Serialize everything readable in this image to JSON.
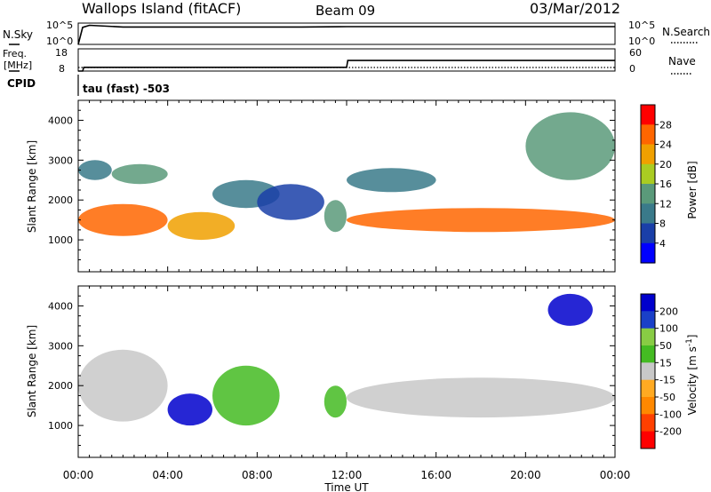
{
  "header": {
    "station": "Wallops Island (fitACF)",
    "beam": "Beam 09",
    "date": "03/Mar/2012"
  },
  "small_panels": {
    "nsky_label": "N.Sky",
    "nsky_ticks": [
      "10^5",
      "10^0"
    ],
    "nsearch_label": "N.Search",
    "nsearch_ticks": [
      "10^5",
      "10^0"
    ],
    "freq_label_line1": "Freq.",
    "freq_label_line2": "[MHz]",
    "freq_ticks": [
      "18",
      "8"
    ],
    "nave_label": "Nave",
    "nave_ticks": [
      "60",
      "0"
    ],
    "cpid_label": "CPID",
    "cpid_text": "tau (fast) -503"
  },
  "colors": {
    "power_scale": [
      "#0000ff",
      "#1a3fa8",
      "#3a7a8a",
      "#5a9a7a",
      "#aacc22",
      "#f0a000",
      "#ff6600",
      "#ff0000"
    ],
    "velocity_scale": [
      "#ff0000",
      "#ff4000",
      "#ff8800",
      "#ffaa22",
      "#bbbbbb",
      "#44bb22",
      "#88cc44",
      "#1a40c8",
      "#0000cc"
    ],
    "velocity_gray": "#c8c8c8"
  },
  "chart_data": [
    {
      "type": "line",
      "panel": "N.Sky / N.Search",
      "x_unit": "hours UT",
      "x": [
        0,
        0.2,
        0.5,
        2,
        4,
        6,
        8,
        10,
        12,
        14,
        16,
        18,
        20,
        22,
        24
      ],
      "series": [
        {
          "values": [
            1,
            10000.0,
            30000.0,
            12000.0,
            12000.0,
            12000.0,
            12000.0,
            12000.0,
            15000.0,
            15000.0,
            15000.0,
            15000.0,
            15000.0,
            15000.0,
            15000.0
          ]
        }
      ],
      "yscale": "log",
      "yticks": [
        "10^0",
        "10^5"
      ]
    },
    {
      "type": "line",
      "panel": "Freq. / Nave",
      "x_unit": "hours UT",
      "series": [
        {
          "x": [
            0,
            0.2,
            0.25,
            12,
            12.05,
            24
          ],
          "values": [
            8,
            8,
            10.5,
            10.5,
            15,
            15
          ]
        },
        {
          "x": [
            0,
            24
          ],
          "values": [
            0,
            0
          ]
        }
      ],
      "yticks_left": [
        "8",
        "18"
      ],
      "yticks_right": [
        "0",
        "60"
      ]
    },
    {
      "type": "heatmap",
      "title": "Power [dB]",
      "xlabel": "Time UT",
      "ylabel": "Slant Range [km]",
      "xlim_hours": [
        0,
        24
      ],
      "ylim": [
        200,
        4500
      ],
      "xticks": [
        "00:00",
        "04:00",
        "08:00",
        "12:00",
        "16:00",
        "20:00",
        "00:00"
      ],
      "yticks": [
        1000,
        2000,
        3000,
        4000
      ],
      "colorbar_label": "Power [dB]",
      "colorbar_ticks": [
        4,
        8,
        12,
        16,
        20,
        24,
        28
      ],
      "colorbar_range": [
        0,
        32
      ],
      "regions": [
        {
          "x": [
            0,
            4
          ],
          "y": [
            1100,
            1900
          ],
          "level": 26
        },
        {
          "x": [
            4,
            7
          ],
          "y": [
            1000,
            1700
          ],
          "level": 22
        },
        {
          "x": [
            1.5,
            4
          ],
          "y": [
            2400,
            2900
          ],
          "level": 12
        },
        {
          "x": [
            0,
            1.5
          ],
          "y": [
            2500,
            3000
          ],
          "level": 8
        },
        {
          "x": [
            6,
            9
          ],
          "y": [
            1800,
            2500
          ],
          "level": 8
        },
        {
          "x": [
            8,
            11
          ],
          "y": [
            1500,
            2400
          ],
          "level": 6
        },
        {
          "x": [
            11,
            12
          ],
          "y": [
            1200,
            2000
          ],
          "level": 14
        },
        {
          "x": [
            12,
            24
          ],
          "y": [
            1200,
            1800
          ],
          "level": 24
        },
        {
          "x": [
            12,
            16
          ],
          "y": [
            2200,
            2800
          ],
          "level": 10
        },
        {
          "x": [
            20,
            24
          ],
          "y": [
            2500,
            4200
          ],
          "level": 12
        }
      ]
    },
    {
      "type": "heatmap",
      "title": "Velocity [m s^-1]",
      "xlabel": "Time UT",
      "ylabel": "Slant Range [km]",
      "xlim_hours": [
        0,
        24
      ],
      "ylim": [
        200,
        4500
      ],
      "xticks": [
        "00:00",
        "04:00",
        "08:00",
        "12:00",
        "16:00",
        "20:00",
        "00:00"
      ],
      "yticks": [
        1000,
        2000,
        3000,
        4000
      ],
      "colorbar_label": "Velocity [m s^-1]",
      "colorbar_ticks": [
        200,
        100,
        50,
        15,
        -15,
        -50,
        -100,
        -200
      ],
      "regions": [
        {
          "x": [
            0,
            4
          ],
          "y": [
            1100,
            2900
          ],
          "velocity": 0
        },
        {
          "x": [
            4,
            6
          ],
          "y": [
            1000,
            1800
          ],
          "velocity": 150
        },
        {
          "x": [
            6,
            9
          ],
          "y": [
            1000,
            2500
          ],
          "velocity": 40
        },
        {
          "x": [
            11,
            12
          ],
          "y": [
            1200,
            2000
          ],
          "velocity": 40
        },
        {
          "x": [
            12,
            24
          ],
          "y": [
            1200,
            2200
          ],
          "velocity": 0
        },
        {
          "x": [
            21,
            23
          ],
          "y": [
            3500,
            4300
          ],
          "velocity": 200
        }
      ]
    }
  ],
  "axes": {
    "ylabel": "Slant Range [km]",
    "xlabel": "Time UT",
    "xticks": [
      "00:00",
      "04:00",
      "08:00",
      "12:00",
      "16:00",
      "20:00",
      "00:00"
    ],
    "yticks": [
      "1000",
      "2000",
      "3000",
      "4000"
    ]
  },
  "power_bar": {
    "label": "Power [dB]",
    "ticks": [
      "4",
      "8",
      "12",
      "16",
      "20",
      "24",
      "28"
    ]
  },
  "velocity_bar": {
    "label_prefix": "Velocity [m s",
    "label_exp": "-1",
    "label_suffix": "]",
    "ticks": [
      "200",
      "100",
      "50",
      "15",
      "-15",
      "-50",
      "-100",
      "-200"
    ]
  }
}
